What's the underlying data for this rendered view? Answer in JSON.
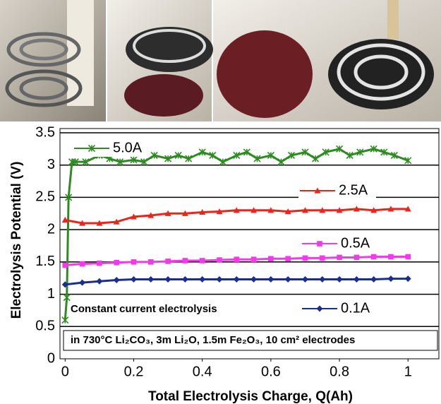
{
  "chart_data": {
    "type": "line",
    "x_label": "Total Electrolysis Charge, Q(Ah)",
    "y_label": "Electrolysis Potential (V)",
    "annotations": [
      "Constant current electrolysis",
      "in 730°C Li₂CO₃, 3m Li₂O, 1.5m Fe₂O₃, 10 cm² electrodes"
    ],
    "xlim": [
      -0.015,
      1.09
    ],
    "xticks": [
      0,
      0.2,
      0.4,
      0.6,
      0.8,
      1
    ],
    "ylim": [
      0,
      3.5
    ],
    "yticks": [
      0,
      0.5,
      1,
      1.5,
      2,
      2.5,
      3,
      3.5
    ],
    "grid": true,
    "series": [
      {
        "name": "5.0A",
        "color": "#2e8b22",
        "marker": "asterisk",
        "x": [
          0,
          0.005,
          0.01,
          0.02,
          0.03,
          0.06,
          0.1,
          0.13,
          0.16,
          0.2,
          0.23,
          0.26,
          0.3,
          0.33,
          0.36,
          0.4,
          0.43,
          0.46,
          0.5,
          0.53,
          0.56,
          0.6,
          0.63,
          0.66,
          0.7,
          0.73,
          0.76,
          0.8,
          0.83,
          0.86,
          0.9,
          0.93,
          0.96,
          1.0
        ],
        "values": [
          0.6,
          0.95,
          2.5,
          3.05,
          3.05,
          3.05,
          3.15,
          3.1,
          3.05,
          3.08,
          3.05,
          3.15,
          3.1,
          3.15,
          3.1,
          3.2,
          3.15,
          3.05,
          3.15,
          3.2,
          3.1,
          3.15,
          3.05,
          3.15,
          3.2,
          3.1,
          3.2,
          3.25,
          3.15,
          3.2,
          3.25,
          3.2,
          3.15,
          3.07
        ]
      },
      {
        "name": "2.5A",
        "color": "#e8261c",
        "marker": "triangle",
        "x": [
          0,
          0.05,
          0.1,
          0.15,
          0.2,
          0.25,
          0.3,
          0.35,
          0.4,
          0.45,
          0.5,
          0.55,
          0.6,
          0.65,
          0.7,
          0.75,
          0.8,
          0.85,
          0.9,
          0.95,
          1.0
        ],
        "values": [
          2.15,
          2.1,
          2.1,
          2.12,
          2.2,
          2.22,
          2.25,
          2.25,
          2.27,
          2.28,
          2.3,
          2.3,
          2.3,
          2.28,
          2.3,
          2.3,
          2.3,
          2.32,
          2.3,
          2.32,
          2.32
        ]
      },
      {
        "name": "0.5A",
        "color": "#f03ce8",
        "marker": "square",
        "x": [
          0,
          0.05,
          0.1,
          0.15,
          0.2,
          0.25,
          0.3,
          0.35,
          0.4,
          0.45,
          0.5,
          0.55,
          0.6,
          0.65,
          0.7,
          0.75,
          0.8,
          0.85,
          0.9,
          0.95,
          1.0
        ],
        "values": [
          1.45,
          1.47,
          1.48,
          1.49,
          1.5,
          1.5,
          1.51,
          1.52,
          1.52,
          1.53,
          1.54,
          1.54,
          1.55,
          1.55,
          1.56,
          1.56,
          1.57,
          1.57,
          1.58,
          1.58,
          1.58
        ]
      },
      {
        "name": "0.1A",
        "color": "#1a2f8c",
        "marker": "diamond",
        "x": [
          0,
          0.05,
          0.1,
          0.15,
          0.2,
          0.25,
          0.3,
          0.35,
          0.4,
          0.45,
          0.5,
          0.55,
          0.6,
          0.65,
          0.7,
          0.75,
          0.8,
          0.85,
          0.9,
          0.95,
          1.0
        ],
        "values": [
          1.15,
          1.18,
          1.2,
          1.22,
          1.23,
          1.23,
          1.23,
          1.23,
          1.23,
          1.23,
          1.23,
          1.23,
          1.23,
          1.23,
          1.23,
          1.23,
          1.23,
          1.23,
          1.23,
          1.24,
          1.24
        ]
      }
    ]
  }
}
